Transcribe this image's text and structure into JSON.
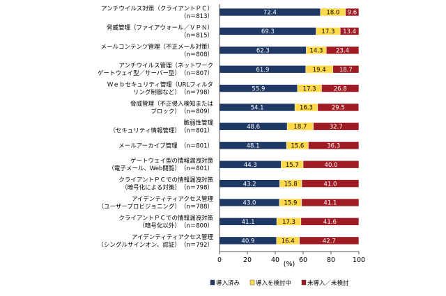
{
  "chart_data": {
    "type": "bar",
    "orientation": "horizontal",
    "stacked": true,
    "categories": [
      [
        "アンチウイルス対策（クライアントＰＣ）",
        "（n＝813）"
      ],
      [
        "脅威管理（ファイアウォール／ＶＰＮ）",
        "（n＝815）"
      ],
      [
        "メールコンテンツ管理（不正メール対策）",
        "（n＝808）"
      ],
      [
        "アンチウイルス管理（ネットワーク",
        "ゲートウェイ型／サーバー型）　（n＝807）"
      ],
      [
        "Ｗｅｂセキュリティ管理（URLフィルタ",
        "リング制御など）　（n＝798）"
      ],
      [
        "脅威管理（不正侵入検知または",
        "ブロック）　（n＝809）"
      ],
      [
        "脆弱性管理",
        "（セキュリティ情報管理）　（n＝801）"
      ],
      [
        "メールアーカイブ管理　（n＝801）"
      ],
      [
        "ゲートウェイ型の情報漏洩対策",
        "（電子メール、Web閲覧）　（n＝801）"
      ],
      [
        "クライアントＰＣでの情報漏洩対策",
        "（暗号化による対策）　（n＝798）"
      ],
      [
        "アイデンティティアクセス管理",
        "（ユーザープロビジョニング）　（n＝788）"
      ],
      [
        "クライアントＰＣでの情報漏洩対策",
        "（暗号化以外）　（n＝800）"
      ],
      [
        "アイデンティティアクセス管理",
        "（シングルサインオン、認証）　（n＝792）"
      ]
    ],
    "series": [
      {
        "name": "導入済み",
        "color": "#1f3864",
        "values": [
          72.4,
          69.3,
          62.3,
          61.9,
          55.9,
          54.1,
          48.6,
          48.1,
          44.3,
          43.2,
          43.0,
          41.1,
          40.9
        ]
      },
      {
        "name": "導入を検討中",
        "color": "#ffd94a",
        "values": [
          18.0,
          17.3,
          14.3,
          19.4,
          17.3,
          16.3,
          18.7,
          15.6,
          15.7,
          15.8,
          15.9,
          17.3,
          16.4
        ]
      },
      {
        "name": "未導入／未検討",
        "color": "#a01c24",
        "values": [
          9.6,
          13.4,
          23.4,
          18.7,
          26.8,
          29.5,
          32.7,
          36.3,
          40.0,
          41.0,
          41.1,
          41.6,
          42.7
        ]
      }
    ],
    "x_ticks": [
      "0",
      "20",
      "40",
      "60",
      "80",
      "100"
    ],
    "xlim": [
      0,
      100
    ],
    "xlabel": "(%)",
    "legend_position": "bottom"
  }
}
